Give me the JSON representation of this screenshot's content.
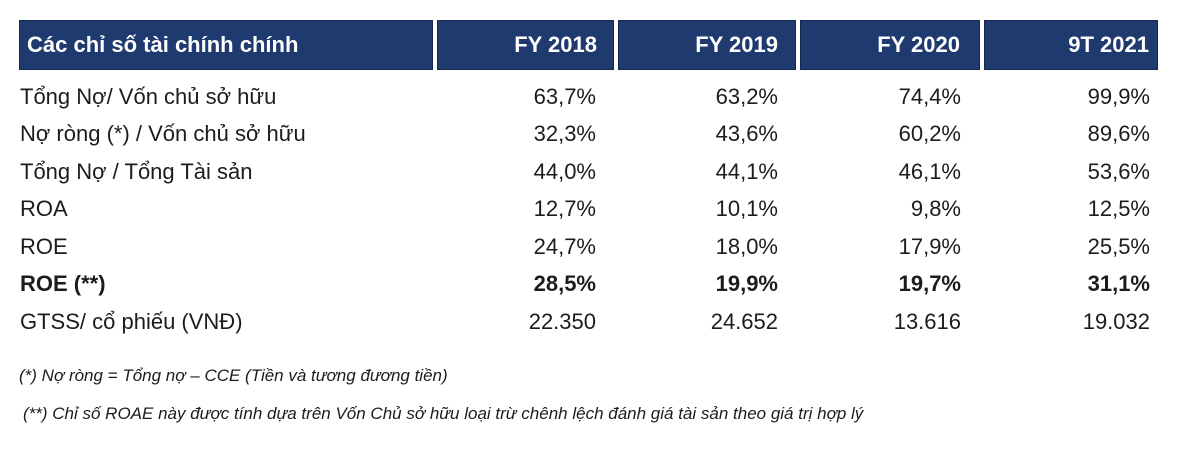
{
  "chart_data": {
    "type": "table",
    "title": "Các chỉ số tài chính chính",
    "columns": [
      "FY 2018",
      "FY 2019",
      "FY 2020",
      "9T 2021"
    ],
    "rows": [
      {
        "label": "Tổng Nợ/ Vốn chủ sở hữu",
        "values": [
          "63,7%",
          "63,2%",
          "74,4%",
          "99,9%"
        ],
        "bold": false
      },
      {
        "label": "Nợ ròng (*) / Vốn chủ sở hữu",
        "values": [
          "32,3%",
          "43,6%",
          "60,2%",
          "89,6%"
        ],
        "bold": false
      },
      {
        "label": "Tổng Nợ / Tổng Tài sản",
        "values": [
          "44,0%",
          "44,1%",
          "46,1%",
          "53,6%"
        ],
        "bold": false
      },
      {
        "label": "ROA",
        "values": [
          "12,7%",
          "10,1%",
          "9,8%",
          "12,5%"
        ],
        "bold": false
      },
      {
        "label": "ROE",
        "values": [
          "24,7%",
          "18,0%",
          "17,9%",
          "25,5%"
        ],
        "bold": false
      },
      {
        "label": "ROE (**)",
        "values": [
          "28,5%",
          "19,9%",
          "19,7%",
          "31,1%"
        ],
        "bold": true
      },
      {
        "label": "GTSS/ cổ phiếu (VNĐ)",
        "values": [
          "22.350",
          "24.652",
          "13.616",
          "19.032"
        ],
        "bold": false
      }
    ],
    "footnotes": [
      "(*) Nợ ròng = Tổng nợ – CCE (Tiền và tương đương tiền)",
      "(**) Chỉ số ROAE này được tính dựa trên Vốn Chủ sở hữu loại trừ chênh lệch đánh giá tài sản theo giá trị hợp lý"
    ],
    "colors": {
      "header_bg": "#1e3a6e",
      "header_border": "#16294f",
      "header_text": "#ffffff",
      "body_text": "#1c1c1c"
    }
  }
}
